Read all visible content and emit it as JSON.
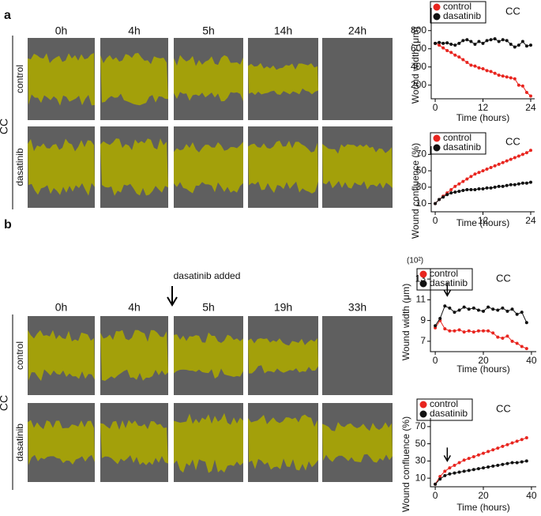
{
  "panel_a": {
    "label": "a",
    "times": [
      "0h",
      "4h",
      "5h",
      "14h",
      "24h"
    ],
    "rows": [
      "control",
      "dasatinib"
    ],
    "group": "CC"
  },
  "panel_b": {
    "label": "b",
    "note": "dasatinib added",
    "times": [
      "0h",
      "4h",
      "5h",
      "19h",
      "33h"
    ],
    "rows": [
      "control",
      "dasatinib"
    ],
    "group": "CC"
  },
  "chart_data": [
    {
      "type": "line",
      "ylabel": "Wound width (μm)",
      "xlabel": "Time (hours)",
      "annotation": "CC",
      "x": [
        0,
        1,
        2,
        3,
        4,
        5,
        6,
        7,
        8,
        9,
        10,
        11,
        12,
        13,
        14,
        15,
        16,
        17,
        18,
        19,
        20,
        21,
        22,
        23,
        24
      ],
      "xlim": [
        -1,
        25
      ],
      "xticks": [
        0,
        12,
        24
      ],
      "ylim": [
        50,
        1050
      ],
      "yticks": [
        200,
        400,
        600,
        800
      ],
      "series": [
        {
          "name": "control",
          "color": "#e8251f",
          "values": [
            660,
            640,
            610,
            580,
            560,
            530,
            510,
            480,
            450,
            420,
            410,
            390,
            380,
            360,
            350,
            330,
            310,
            300,
            290,
            280,
            270,
            200,
            190,
            120,
            80
          ]
        },
        {
          "name": "dasatinib",
          "color": "#111111",
          "values": [
            660,
            670,
            660,
            665,
            650,
            640,
            660,
            690,
            700,
            680,
            650,
            680,
            660,
            690,
            700,
            710,
            680,
            700,
            690,
            650,
            620,
            640,
            680,
            630,
            640
          ]
        }
      ]
    },
    {
      "type": "line",
      "ylabel": "Wound confluence (%)",
      "xlabel": "Time (hours)",
      "annotation": "CC",
      "x": [
        0,
        1,
        2,
        3,
        4,
        5,
        6,
        7,
        8,
        9,
        10,
        11,
        12,
        13,
        14,
        15,
        16,
        17,
        18,
        19,
        20,
        21,
        22,
        23,
        24
      ],
      "xlim": [
        -1,
        25
      ],
      "xticks": [
        0,
        12,
        24
      ],
      "ylim": [
        0,
        80
      ],
      "yticks": [
        10,
        30,
        50,
        70
      ],
      "series": [
        {
          "name": "control",
          "color": "#e8251f",
          "values": [
            10,
            15,
            19,
            23,
            27,
            31,
            34,
            37,
            40,
            43,
            46,
            48,
            50,
            52,
            54,
            56,
            58,
            60,
            62,
            64,
            66,
            68,
            70,
            72,
            75
          ]
        },
        {
          "name": "dasatinib",
          "color": "#111111",
          "values": [
            10,
            15,
            18,
            21,
            23,
            24,
            25,
            26,
            27,
            27,
            27,
            28,
            28,
            29,
            29,
            30,
            31,
            31,
            32,
            33,
            33,
            34,
            35,
            35,
            36
          ]
        }
      ]
    },
    {
      "type": "line",
      "ylabel": "Wound width (μm)",
      "xlabel": "Time (hours)",
      "annotation": "CC",
      "multiplier": "(10²)",
      "arrow_at": 5,
      "x": [
        0,
        2,
        4,
        6,
        8,
        10,
        12,
        14,
        16,
        18,
        20,
        22,
        24,
        26,
        28,
        30,
        32,
        34,
        36,
        38
      ],
      "xlim": [
        -2,
        42
      ],
      "xticks": [
        0,
        20,
        40
      ],
      "ylim": [
        6,
        14
      ],
      "yticks": [
        7,
        9,
        11,
        13
      ],
      "series": [
        {
          "name": "control",
          "color": "#e8251f",
          "values": [
            8.3,
            9.0,
            8.2,
            8.0,
            8.0,
            8.1,
            7.9,
            8.0,
            7.9,
            8.0,
            8.0,
            8.0,
            7.8,
            7.4,
            7.3,
            7.5,
            7.0,
            6.8,
            6.5,
            6.3
          ]
        },
        {
          "name": "dasatinib",
          "color": "#111111",
          "values": [
            8.5,
            9.2,
            10.4,
            10.2,
            9.8,
            10.0,
            10.3,
            10.1,
            10.2,
            10.0,
            9.9,
            10.3,
            10.1,
            10.0,
            10.2,
            9.9,
            10.1,
            9.6,
            9.8,
            8.8
          ]
        }
      ]
    },
    {
      "type": "line",
      "ylabel": "Wound confluence (%)",
      "xlabel": "Time (hours)",
      "annotation": "CC",
      "arrow_at": 5,
      "x": [
        0,
        2,
        4,
        6,
        8,
        10,
        12,
        14,
        16,
        18,
        20,
        22,
        24,
        26,
        28,
        30,
        32,
        34,
        36,
        38
      ],
      "xlim": [
        -2,
        42
      ],
      "xticks": [
        0,
        20,
        40
      ],
      "ylim": [
        0,
        80
      ],
      "yticks": [
        10,
        30,
        50,
        70
      ],
      "series": [
        {
          "name": "control",
          "color": "#e8251f",
          "values": [
            3,
            12,
            18,
            22,
            25,
            28,
            31,
            33,
            35,
            37,
            39,
            41,
            43,
            45,
            47,
            49,
            51,
            53,
            55,
            57
          ]
        },
        {
          "name": "dasatinib",
          "color": "#111111",
          "values": [
            3,
            9,
            13,
            15,
            16,
            17,
            18,
            19,
            20,
            21,
            22,
            23,
            24,
            25,
            26,
            27,
            28,
            28,
            29,
            30
          ]
        }
      ]
    }
  ]
}
